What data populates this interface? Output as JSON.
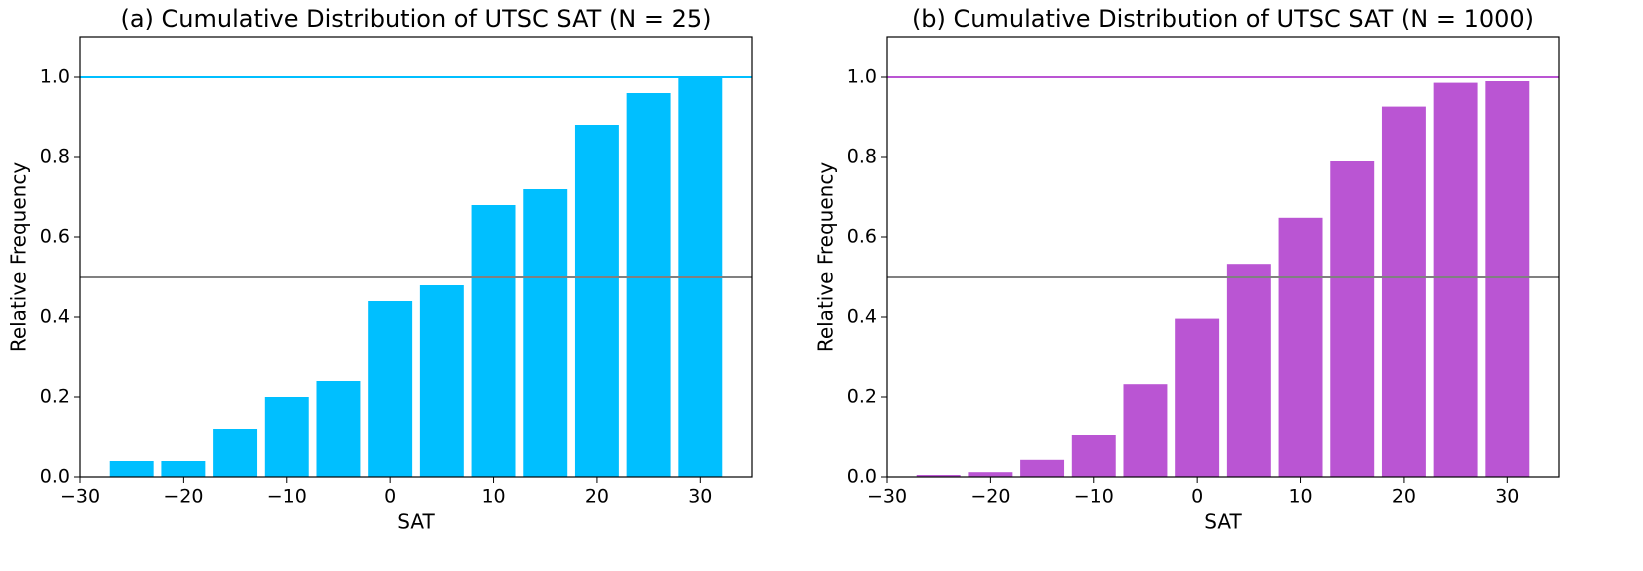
{
  "chart_data": [
    {
      "type": "bar",
      "title": "(a) Cumulative Distribution of UTSC SAT (N = 25)",
      "x_label": "SAT",
      "y_label": "Relative Frequency",
      "x": [
        -25,
        -20,
        -15,
        -10,
        -5,
        0,
        5,
        10,
        15,
        20,
        25,
        30
      ],
      "values": [
        0.04,
        0.04,
        0.12,
        0.2,
        0.24,
        0.44,
        0.48,
        0.68,
        0.72,
        0.88,
        0.96,
        1.0
      ],
      "color": "#00bfff",
      "hlines": [
        {
          "y": 1.0,
          "color": "#00bfff"
        },
        {
          "y": 0.5,
          "color": "#808080"
        }
      ],
      "xlim": [
        -30,
        35
      ],
      "ylim": [
        0,
        1.1
      ],
      "xticks": [
        {
          "value": -30,
          "label": "−30"
        },
        {
          "value": -20,
          "label": "−20"
        },
        {
          "value": -10,
          "label": "−10"
        },
        0,
        10,
        20,
        30
      ],
      "yticks": [
        {
          "value": 0,
          "label": "0.0"
        },
        0.2,
        0.4,
        0.6,
        0.8,
        {
          "value": 1,
          "label": "1.0"
        }
      ]
    },
    {
      "type": "bar",
      "title": "(b) Cumulative Distribution of UTSC SAT (N = 1000)",
      "x_label": "SAT",
      "y_label": "Relative Frequency",
      "x": [
        -25,
        -20,
        -15,
        -10,
        -5,
        0,
        5,
        10,
        15,
        20,
        25,
        30
      ],
      "values": [
        0.005,
        0.012,
        0.043,
        0.105,
        0.232,
        0.396,
        0.532,
        0.648,
        0.79,
        0.926,
        0.986,
        0.99
      ],
      "color": "#ba55d3",
      "hlines": [
        {
          "y": 1.0,
          "color": "#ba55d3"
        },
        {
          "y": 0.5,
          "color": "#808080"
        }
      ],
      "xlim": [
        -30,
        35
      ],
      "ylim": [
        0,
        1.1
      ],
      "xticks": [
        {
          "value": -30,
          "label": "−30"
        },
        {
          "value": -20,
          "label": "−20"
        },
        {
          "value": -10,
          "label": "−10"
        },
        0,
        10,
        20,
        30
      ],
      "yticks": [
        {
          "value": 0,
          "label": "0.0"
        },
        0.2,
        0.4,
        0.6,
        0.8,
        {
          "value": 1,
          "label": "1.0"
        }
      ]
    }
  ]
}
